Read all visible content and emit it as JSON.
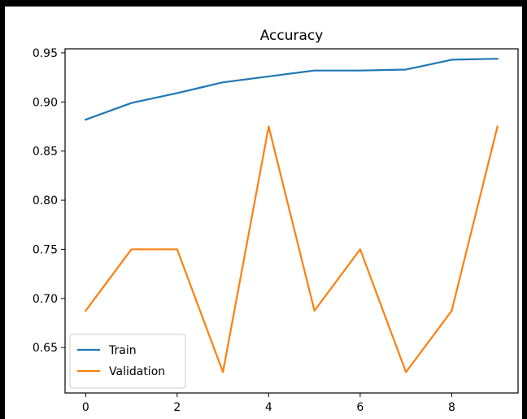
{
  "chart_data": {
    "type": "line",
    "title": "Accuracy",
    "xlabel": "",
    "ylabel": "",
    "x": [
      0,
      1,
      2,
      3,
      4,
      5,
      6,
      7,
      8,
      9
    ],
    "xlim": [
      -0.45,
      9.45
    ],
    "ylim": [
      0.6038,
      0.9541
    ],
    "xticks": [
      0,
      2,
      4,
      6,
      8
    ],
    "xtick_labels": [
      "0",
      "2",
      "4",
      "6",
      "8"
    ],
    "yticks": [
      0.65,
      0.7,
      0.75,
      0.8,
      0.85,
      0.9,
      0.95
    ],
    "ytick_labels": [
      "0.65",
      "0.70",
      "0.75",
      "0.80",
      "0.85",
      "0.90",
      "0.95"
    ],
    "grid": false,
    "legend_position": "lower-left",
    "series": [
      {
        "name": "Train",
        "color": "#1f77b4",
        "values": [
          0.882,
          0.899,
          0.909,
          0.92,
          0.926,
          0.932,
          0.932,
          0.933,
          0.943,
          0.944
        ]
      },
      {
        "name": "Validation",
        "color": "#ff7f0e",
        "values": [
          0.6875,
          0.75,
          0.75,
          0.625,
          0.875,
          0.6875,
          0.75,
          0.625,
          0.6875,
          0.875
        ]
      }
    ]
  }
}
